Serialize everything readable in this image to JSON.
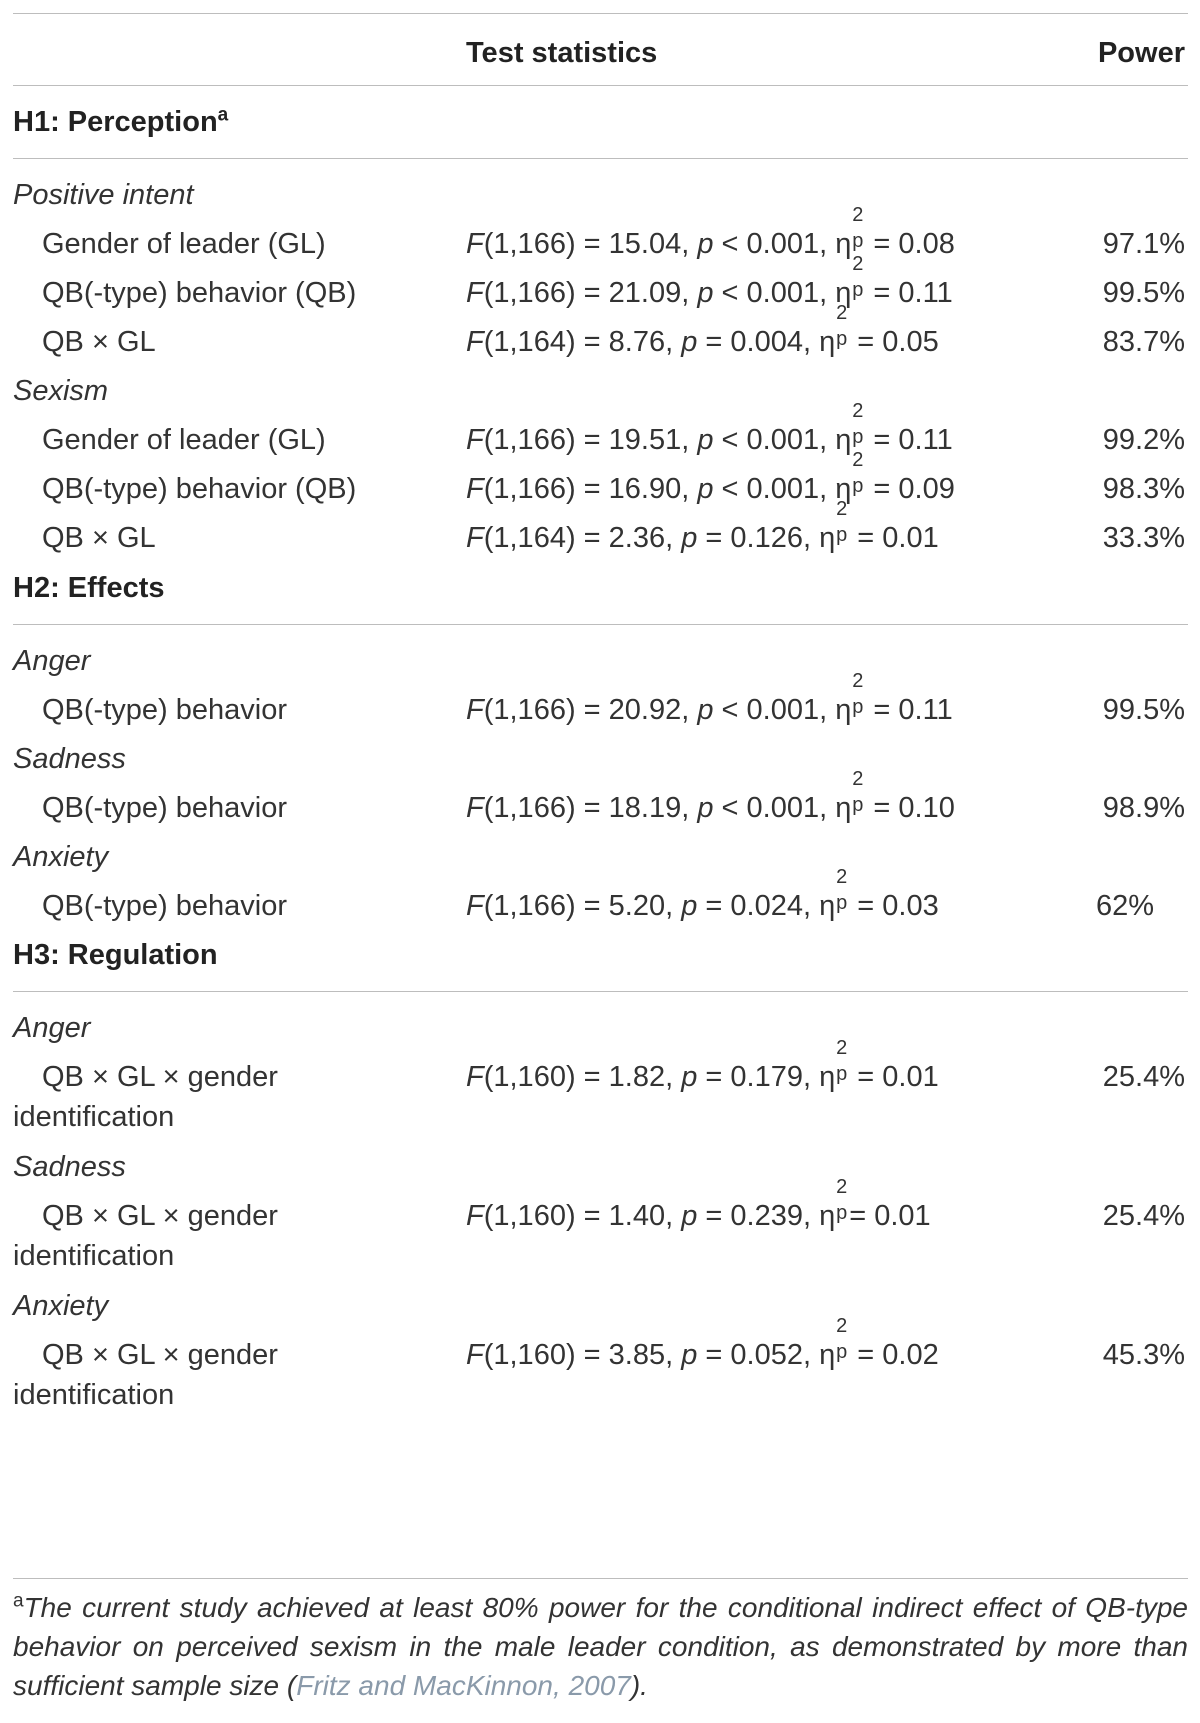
{
  "header": {
    "col1": "",
    "col2": "Test statistics",
    "col3": "Power"
  },
  "sections": [
    {
      "title": "H1: Perception",
      "title_sup": "a",
      "groups": [
        {
          "name": "Positive intent",
          "rows": [
            {
              "label": "Gender of leader (GL)",
              "df": "(1,166) = 15.04, ",
              "p": " < 0.001, ",
              "eta": " = 0.08",
              "power": "97.1%"
            },
            {
              "label": "QB(-type) behavior (QB)",
              "df": "(1,166) = 21.09, ",
              "p": " < 0.001, ",
              "eta": " = 0.11",
              "power": "99.5%"
            },
            {
              "label": "QB × GL",
              "df": "(1,164) = 8.76, ",
              "p": " = 0.004, ",
              "eta": " = 0.05",
              "power": "83.7%"
            }
          ]
        },
        {
          "name": "Sexism",
          "rows": [
            {
              "label": "Gender of leader (GL)",
              "df": "(1,166) = 19.51, ",
              "p": " < 0.001, ",
              "eta": " = 0.11",
              "power": "99.2%"
            },
            {
              "label": "QB(-type) behavior (QB)",
              "df": "(1,166) = 16.90, ",
              "p": " < 0.001, ",
              "eta": " = 0.09",
              "power": "98.3%"
            },
            {
              "label": "QB × GL",
              "df": "(1,164) = 2.36, ",
              "p": " = 0.126, ",
              "eta": " = 0.01",
              "power": "33.3%"
            }
          ]
        }
      ]
    },
    {
      "title": "H2: Effects",
      "groups": [
        {
          "name": "Anger",
          "rows": [
            {
              "label": "QB(-type) behavior",
              "df": "(1,166) = 20.92, ",
              "p": " < 0.001, ",
              "eta": " = 0.11",
              "power": "99.5%"
            }
          ]
        },
        {
          "name": "Sadness",
          "rows": [
            {
              "label": "QB(-type) behavior",
              "df": "(1,166) = 18.19, ",
              "p": " < 0.001, ",
              "eta": " = 0.10",
              "power": "98.9%"
            }
          ]
        },
        {
          "name": "Anxiety",
          "rows": [
            {
              "label": "QB(-type) behavior",
              "df": "(1,166) = 5.20, ",
              "p": " = 0.024, ",
              "eta": " = 0.03",
              "power": "62%"
            }
          ]
        }
      ]
    },
    {
      "title": "H3: Regulation",
      "groups": [
        {
          "name": "Anger",
          "rows": [
            {
              "label": "QB × GL × gender",
              "label2": "identification",
              "df": "(1,160) = 1.82, ",
              "p": " = 0.179, ",
              "eta": " = 0.01",
              "power": "25.4%"
            }
          ]
        },
        {
          "name": "Sadness",
          "rows": [
            {
              "label": "QB × GL × gender",
              "label2": "identification",
              "df": "(1,160) = 1.40, ",
              "p": " = 0.239, ",
              "eta": "= 0.01",
              "power": "25.4%"
            }
          ]
        },
        {
          "name": "Anxiety",
          "rows": [
            {
              "label": "QB × GL × gender",
              "label2": "identification",
              "df": "(1,160) = 3.85, ",
              "p": " = 0.052, ",
              "eta": " = 0.02",
              "power": "45.3%"
            }
          ]
        }
      ]
    }
  ],
  "stat_symbols": {
    "F": "F",
    "p": "p",
    "eta": "η",
    "eta_sup": "2",
    "eta_sub": "p"
  },
  "footnote": {
    "marker": "a",
    "text": "The current study achieved at least 80% power for the conditional indirect effect of QB-type behavior on perceived sexism in the male leader condition, as demonstrated by more than sufficient sample size (",
    "link": "Fritz and MacKinnon, 2007",
    "end": ")."
  }
}
